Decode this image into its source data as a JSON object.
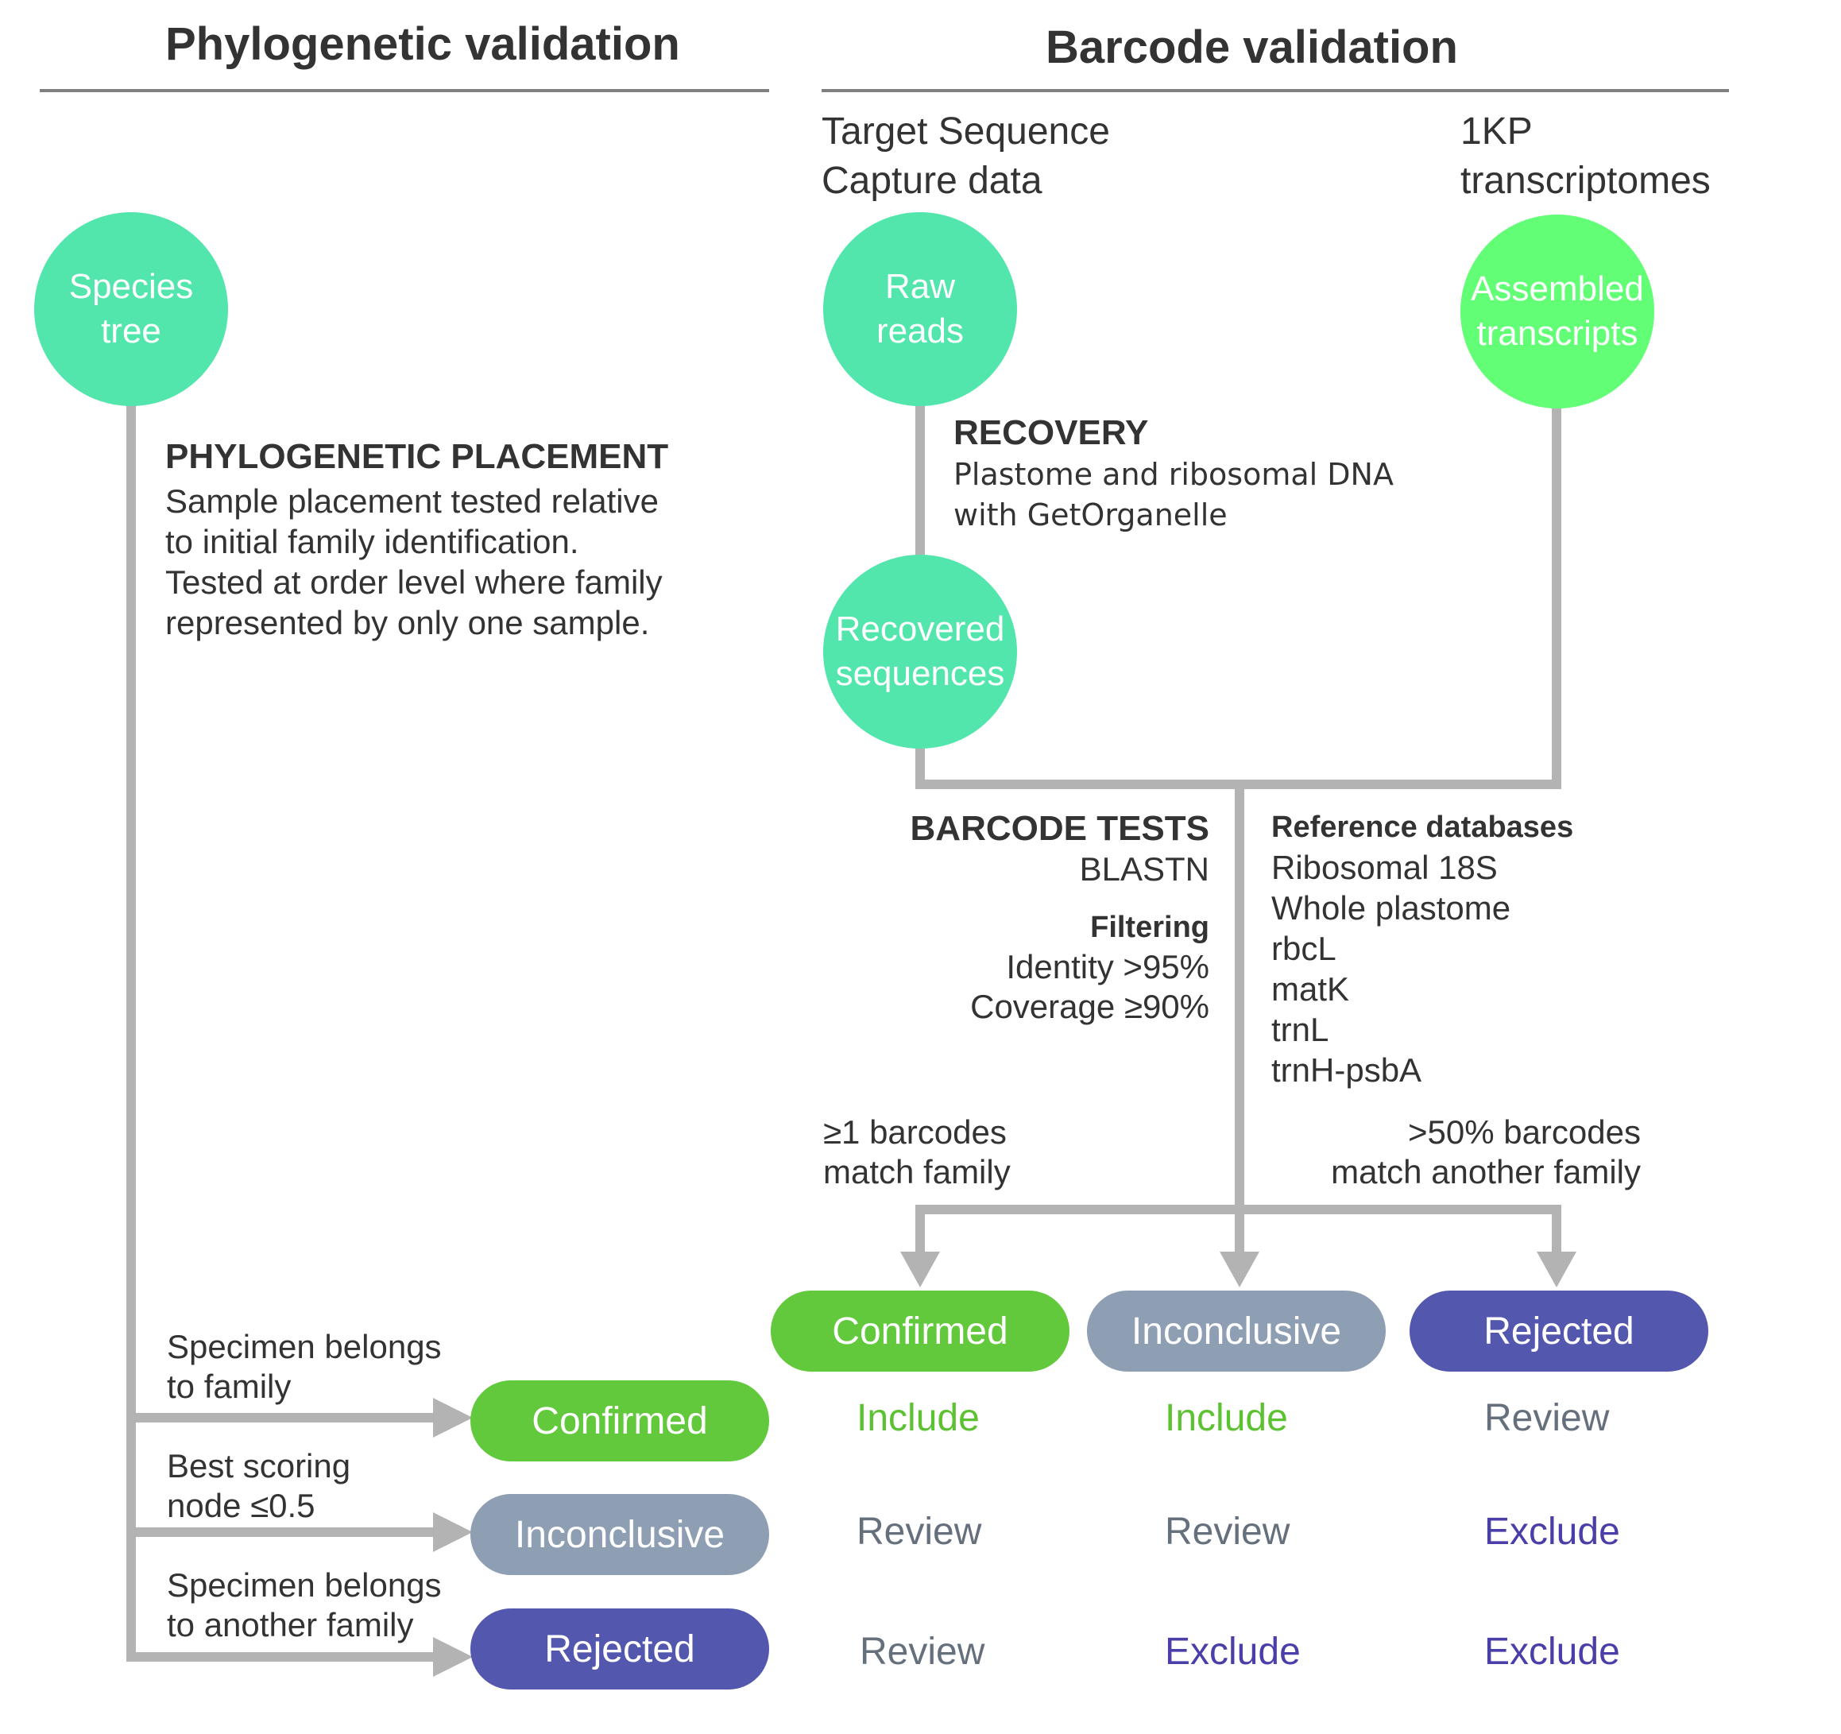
{
  "colors": {
    "circle_teal": "#52e6ac",
    "circle_green": "#62ff76",
    "confirmed": "#62c83c",
    "inconclusive": "#8e9eb3",
    "rejected": "#5457ae",
    "include_text": "#5cc232",
    "review_text": "#66707d",
    "exclude_text": "#4a3ea8",
    "connector": "#b3b3b3",
    "rule": "#808080"
  },
  "phylo": {
    "title": "Phylogenetic validation",
    "species_tree": [
      "Species",
      "tree"
    ],
    "placement_title": "PHYLOGENETIC PLACEMENT",
    "placement_lines": [
      "Sample placement tested relative",
      "to initial family identification.",
      "Tested at order level where family",
      "represented by only one sample."
    ],
    "branch_belongs": [
      "Specimen belongs",
      "to family"
    ],
    "branch_best": [
      "Best scoring",
      "node ≤0.5"
    ],
    "branch_another": [
      "Specimen belongs",
      "to another family"
    ],
    "outcomes": [
      "Confirmed",
      "Inconclusive",
      "Rejected"
    ]
  },
  "barcode": {
    "title": "Barcode validation",
    "source_left": [
      "Target Sequence",
      "Capture data"
    ],
    "source_right": [
      "1KP",
      "transcriptomes"
    ],
    "raw_reads": [
      "Raw",
      "reads"
    ],
    "assembled": [
      "Assembled",
      "transcripts"
    ],
    "recovered": [
      "Recovered",
      "sequences"
    ],
    "recovery_title": "RECOVERY",
    "recovery_lines": [
      "Plastome and ribosomal DNA",
      "with GetOrganelle"
    ],
    "tests_title": "BARCODE TESTS",
    "tests_method": "BLASTN",
    "filtering_title": "Filtering",
    "filtering_lines": [
      "Identity >95%",
      "Coverage ≥90%"
    ],
    "refdb_title": "Reference databases",
    "refdb_items": [
      "Ribosomal 18S",
      "Whole plastome",
      "rbcL",
      "matK",
      "trnL",
      "trnH-psbA"
    ],
    "cond_left": [
      "≥1 barcodes",
      "match family"
    ],
    "cond_right": [
      ">50% barcodes",
      "match another family"
    ],
    "outcomes": [
      "Confirmed",
      "Inconclusive",
      "Rejected"
    ]
  },
  "matrix": {
    "rows": [
      [
        "Include",
        "Include",
        "Review"
      ],
      [
        "Review",
        "Review",
        "Exclude"
      ],
      [
        "Review",
        "Exclude",
        "Exclude"
      ]
    ]
  }
}
